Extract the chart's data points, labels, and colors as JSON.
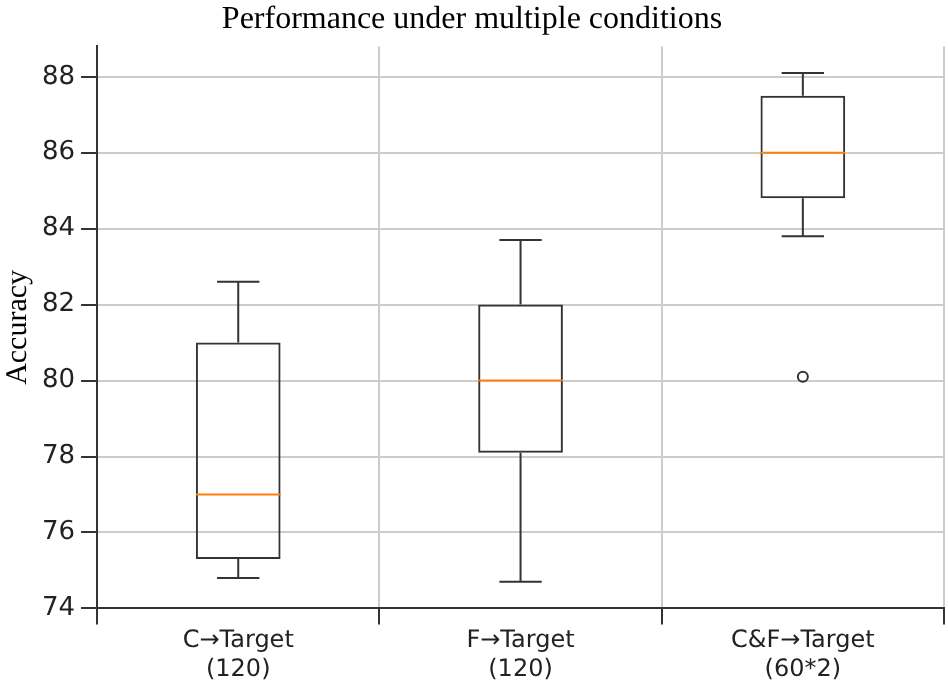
{
  "chart_data": {
    "type": "box",
    "title": "Performance under multiple conditions",
    "ylabel": "Accuracy",
    "categories": [
      "C→Target\n(120)",
      "F→Target\n(120)",
      "C&F→Target\n(60*2)"
    ],
    "color": "#333333",
    "boxes": [
      {
        "low": 74.8,
        "q1": 75.3,
        "median": 77.0,
        "q3": 81.0,
        "high": 82.6
      },
      {
        "low": 74.7,
        "q1": 78.1,
        "median": 80.0,
        "q3": 82.0,
        "high": 83.7
      },
      {
        "low": 83.8,
        "q1": 84.8,
        "median": 86.0,
        "q3": 87.5,
        "high": 88.1,
        "outliers": [
          80.1
        ]
      }
    ],
    "ylim": [
      74,
      88.8
    ],
    "yticks": [
      74,
      76,
      78,
      80,
      82,
      84,
      86,
      88
    ],
    "grid": true
  }
}
